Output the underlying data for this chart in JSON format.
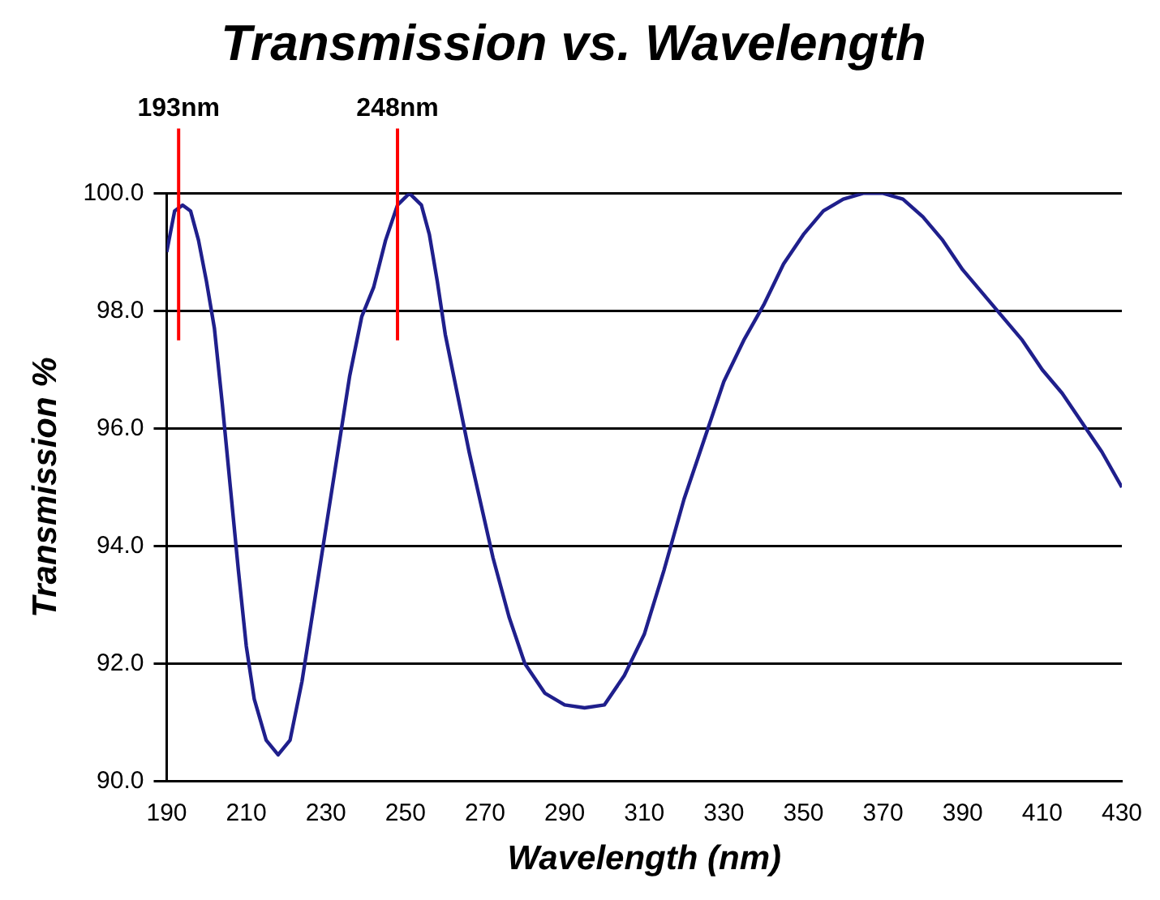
{
  "chart_data": {
    "type": "line",
    "title": "Transmission vs. Wavelength",
    "xlabel": "Wavelength (nm)",
    "ylabel": "Transmission %",
    "x": [
      190,
      192,
      194,
      196,
      198,
      200,
      202,
      204,
      206,
      208,
      210,
      212,
      215,
      218,
      221,
      224,
      227,
      230,
      233,
      236,
      239,
      242,
      245,
      248,
      251,
      254,
      256,
      258,
      260,
      263,
      266,
      269,
      272,
      276,
      280,
      285,
      290,
      295,
      300,
      305,
      310,
      315,
      320,
      325,
      330,
      335,
      340,
      345,
      350,
      355,
      360,
      365,
      370,
      375,
      380,
      385,
      390,
      395,
      400,
      405,
      410,
      415,
      420,
      425,
      430
    ],
    "series": [
      {
        "color": "#1f1f8c",
        "values": [
          99.0,
          99.7,
          99.8,
          99.7,
          99.2,
          98.5,
          97.7,
          96.4,
          95.0,
          93.6,
          92.3,
          91.4,
          90.7,
          90.45,
          90.7,
          91.7,
          93.0,
          94.3,
          95.6,
          96.9,
          97.9,
          98.4,
          99.2,
          99.8,
          100.0,
          99.8,
          99.3,
          98.5,
          97.6,
          96.6,
          95.6,
          94.7,
          93.8,
          92.8,
          92.0,
          91.5,
          91.3,
          91.25,
          91.3,
          91.8,
          92.5,
          93.6,
          94.8,
          95.8,
          96.8,
          97.5,
          98.1,
          98.8,
          99.3,
          99.7,
          99.9,
          100.0,
          100.0,
          99.9,
          99.6,
          99.2,
          98.7,
          98.3,
          97.9,
          97.5,
          97.0,
          96.6,
          96.1,
          95.6,
          95.0
        ]
      }
    ],
    "xlim": [
      190,
      430
    ],
    "xticks": [
      190,
      210,
      230,
      250,
      270,
      290,
      310,
      330,
      350,
      370,
      390,
      410,
      430
    ],
    "ylim": [
      90,
      100
    ],
    "yticks": [
      {
        "value": 90,
        "label": "90.0"
      },
      {
        "value": 92,
        "label": "92.0"
      },
      {
        "value": 94,
        "label": "94.0"
      },
      {
        "value": 96,
        "label": "96.0"
      },
      {
        "value": 98,
        "label": "98.0"
      },
      {
        "value": 100,
        "label": "100.0"
      }
    ],
    "ref_lines": [
      {
        "axis": "x",
        "value": 193,
        "label": "193nm",
        "color": "#ff0000"
      },
      {
        "axis": "x",
        "value": 248,
        "label": "248nm",
        "color": "#ff0000"
      }
    ],
    "grid": "y",
    "legend": false,
    "marker": "none",
    "line_style": "solid"
  }
}
